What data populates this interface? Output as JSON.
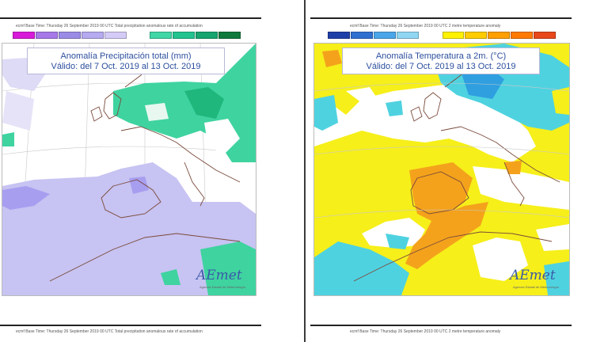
{
  "left_map": {
    "header": "ecmf Base Time: Thursday 26 September 2019 00 UTC Total precipitation anomalous rate of accumulation",
    "title_line1": "Anomalía Precipitación total (mm)",
    "title_line2": "Válido: del 7 Oct. 2019 al 13 Oct. 2019",
    "logo": "AEmet",
    "logo_subtitle": "Agencia Estatal de Meteorología",
    "colorbar": [
      "#d81bd8",
      "#a678e8",
      "#9a8ce6",
      "#b6aaf0",
      "#d4ccf6",
      "#ffffff",
      "#40d6a6",
      "#22c38e",
      "#16a56e",
      "#0f7a3c"
    ],
    "anomaly_colors": {
      "dry": "#c7c3f2",
      "dry_strong": "#a89ef0",
      "wet": "#3fd3a0",
      "wet_strong": "#1fb77c"
    }
  },
  "right_map": {
    "header": "ecmf Base Time: Thursday 26 September 2019 00 UTC 2 metre temperature anomaly",
    "title_line1": "Anomalía Temperatura a 2m. (°C)",
    "title_line2": "Válido: del 7 Oct. 2019 al 13 Oct. 2019",
    "logo": "AEmet",
    "logo_subtitle": "Agencia Estatal de Meteorología",
    "colorbar": [
      "#1f3fa8",
      "#2f6fd0",
      "#4aa6e8",
      "#8fd6f2",
      "#ffffff",
      "#fff200",
      "#ffcc00",
      "#ff9f00",
      "#ff7a00",
      "#e8481a"
    ],
    "anomaly_colors": {
      "cold": "#4fd2e0",
      "cold_strong": "#2f9fe0",
      "warm": "#f6ef1a",
      "warm_strong": "#f4a21c"
    }
  },
  "bottom_left_header": "ecmf Base Time: Thursday 26 September 2019 00 UTC Total precipitation anomalous rate of accumulation",
  "bottom_right_header": "ecmf Base Time: Thursday 26 September 2019 00 UTC 2 metre temperature anomaly"
}
